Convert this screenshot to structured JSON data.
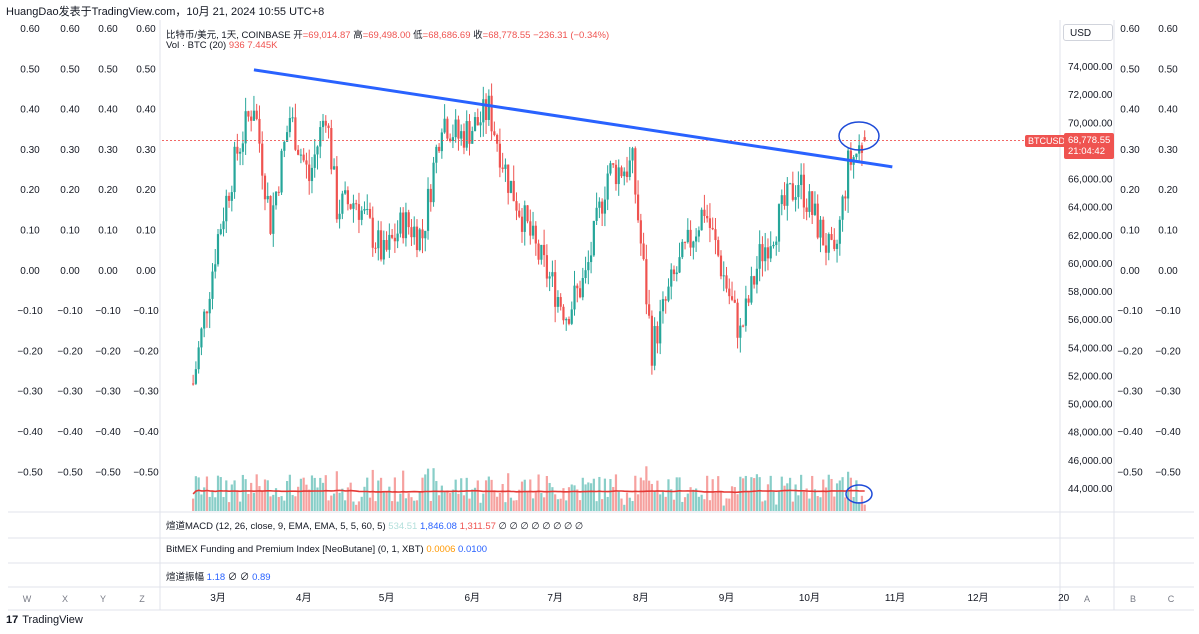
{
  "header": {
    "title": "HuangDao发表于TradingView.com，10月 21, 2024 10:55 UTC+8"
  },
  "legend": {
    "symbol": "比特币/美元, 1天, COINBASE",
    "open_label": "开",
    "open": "=69,014.87",
    "high_label": "高",
    "high": "=69,498.00",
    "low_label": "低",
    "low": "=68,686.69",
    "close_label": "收",
    "close": "=68,778.55",
    "change": "−236.31 (−0.34%)",
    "vol_label": "Vol · BTC (20)",
    "vol_value1": "936",
    "vol_value2": "7.445K"
  },
  "price_axis": {
    "currency": "USD",
    "ticks": [
      "74,000.00",
      "72,000.00",
      "70,000.00",
      "66,000.00",
      "64,000.00",
      "62,000.00",
      "60,000.00",
      "58,000.00",
      "56,000.00",
      "54,000.00",
      "52,000.00",
      "50,000.00",
      "48,000.00",
      "46,000.00",
      "44,000.00"
    ],
    "last_symbol": "BTCUSD",
    "last_price": "68,778.55",
    "countdown": "21:04:42"
  },
  "side_scale_ticks": [
    "0.60",
    "0.50",
    "0.40",
    "0.30",
    "0.20",
    "0.10",
    "0.00",
    "−0.10",
    "−0.20",
    "−0.30",
    "−0.40",
    "−0.50"
  ],
  "indicators": {
    "macd_name": "煊道MACD (12, 26, close, 9, EMA, EMA, 5, 5, 60, 5)",
    "macd_v1": "534.51",
    "macd_v2": "1,846.08",
    "macd_v3": "1,311.57",
    "macd_tail": "∅ ∅ ∅ ∅ ∅ ∅ ∅ ∅",
    "bitmex_name": "BitMEX Funding and Premium Index [NeoButane] (0, 1, XBT)",
    "bitmex_v1": "0.0006",
    "bitmex_v2": "0.0100",
    "amp_name": "煊道振幅",
    "amp_v1": "1.18",
    "amp_tail": "∅ ∅",
    "amp_v2": "0.89"
  },
  "time_axis": {
    "labels": [
      "3月",
      "4月",
      "5月",
      "6月",
      "7月",
      "8月",
      "9月",
      "10月",
      "11月",
      "12月",
      "20"
    ],
    "left_buttons": [
      "W",
      "X",
      "Y",
      "Z"
    ],
    "right_buttons": [
      "A",
      "B",
      "C"
    ]
  },
  "footer": {
    "brand": "TradingView",
    "logo": "17"
  },
  "colors": {
    "up": "#26a69a",
    "down": "#ef5350",
    "trendline": "#2962ff",
    "volume_ma": "#e53935",
    "annotation_circle": "#1e4bd8"
  },
  "chart_data": {
    "type": "candlestick",
    "title": "比特币/美元, 1天, COINBASE",
    "ylim": [
      43000,
      75500
    ],
    "grid": false,
    "x": [
      "2024-02-21",
      "2024-03-01",
      "2024-03-08",
      "2024-03-14",
      "2024-03-20",
      "2024-03-27",
      "2024-04-03",
      "2024-04-09",
      "2024-04-13",
      "2024-04-20",
      "2024-04-30",
      "2024-05-07",
      "2024-05-14",
      "2024-05-21",
      "2024-05-27",
      "2024-06-03",
      "2024-06-07",
      "2024-06-14",
      "2024-06-24",
      "2024-07-05",
      "2024-07-12",
      "2024-07-20",
      "2024-07-29",
      "2024-08-05",
      "2024-08-12",
      "2024-08-24",
      "2024-09-06",
      "2024-09-13",
      "2024-09-27",
      "2024-10-10",
      "2024-10-15",
      "2024-10-21"
    ],
    "close": [
      51500,
      62000,
      68000,
      71500,
      63000,
      70500,
      66000,
      71000,
      64000,
      64500,
      60500,
      63000,
      62000,
      70500,
      69000,
      70000,
      71000,
      66000,
      61000,
      56500,
      59000,
      66500,
      67000,
      54000,
      58500,
      64000,
      55000,
      60500,
      66000,
      60000,
      67000,
      68778.55
    ],
    "trendline": {
      "start": [
        "2024-03-14",
        73800
      ],
      "end": [
        "2024-10-31",
        66900
      ]
    },
    "last_close": 68778.55
  }
}
